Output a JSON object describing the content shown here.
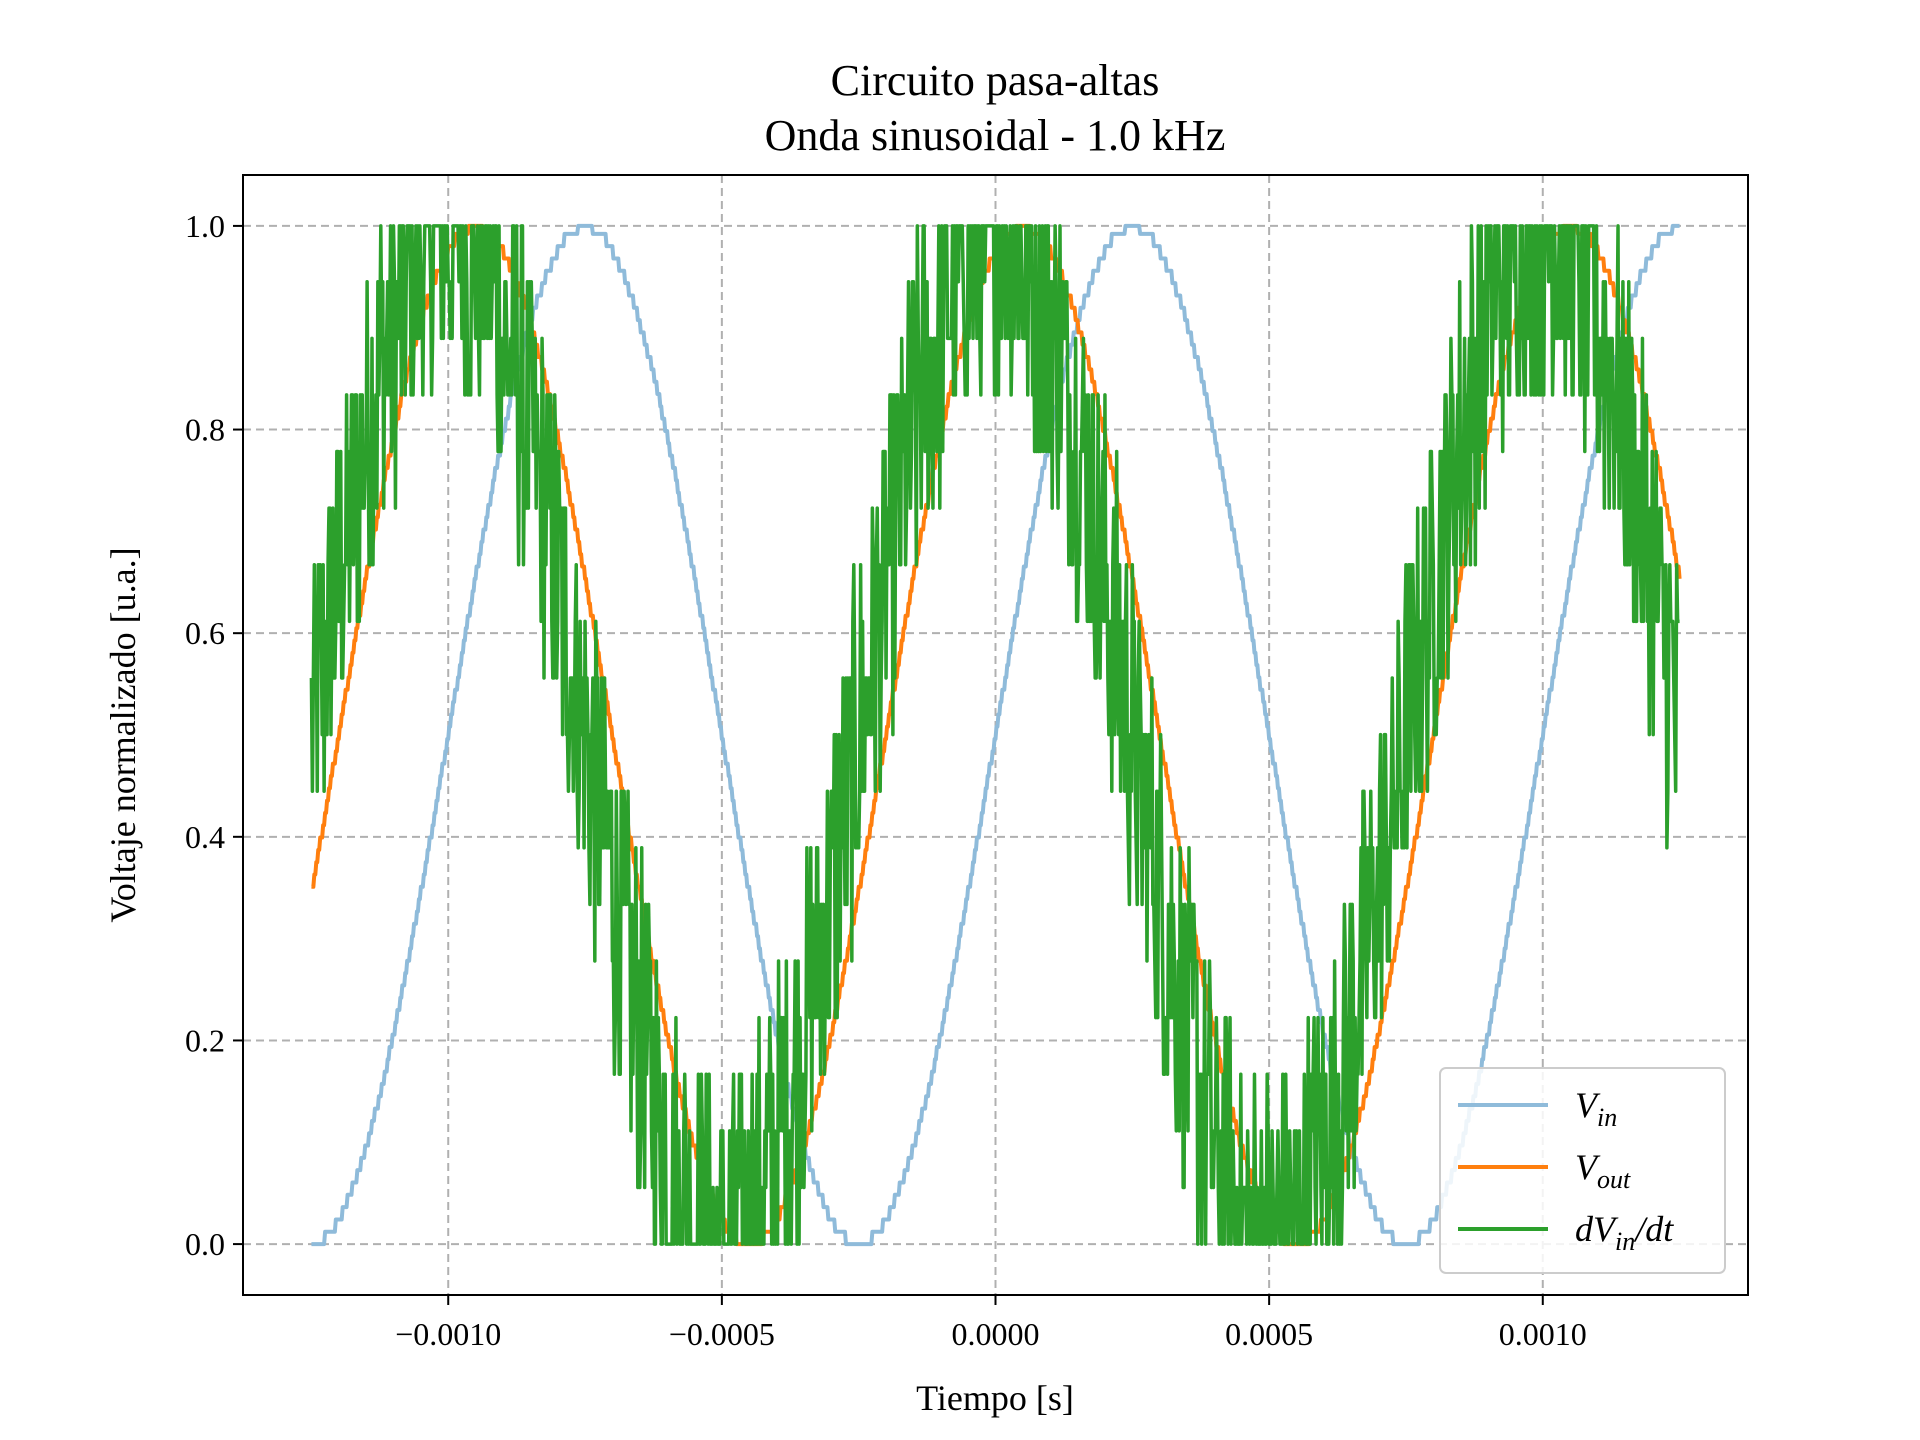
{
  "chart_data": {
    "type": "line",
    "title": [
      "Circuito pasa-altas",
      "Onda sinusoidal - 1.0 kHz"
    ],
    "xlabel": "Tiempo [s]",
    "ylabel": "Voltaje normalizado [u.a.]",
    "xlim": [
      -0.001375,
      0.001375
    ],
    "ylim": [
      -0.05,
      1.05
    ],
    "xticks": [
      -0.001,
      -0.0005,
      0.0,
      0.0005,
      0.001
    ],
    "xtick_labels": [
      "−0.0010",
      "−0.0005",
      "0.0000",
      "0.0005",
      "0.0010"
    ],
    "yticks": [
      0.0,
      0.2,
      0.4,
      0.6,
      0.8,
      1.0
    ],
    "ytick_labels": [
      "0.0",
      "0.2",
      "0.4",
      "0.6",
      "0.8",
      "1.0"
    ],
    "grid": true,
    "legend_position": "lower-right",
    "frequency_hz": 1000,
    "x_range": [
      -0.00125,
      0.00125
    ],
    "series": [
      {
        "name": "V_in",
        "legend_main": "V",
        "legend_sub": "in",
        "legend_suffix": "",
        "color": "#8fbbda",
        "shape": "sine",
        "phase_peak_at": 0.00025,
        "quantization": 0.0121,
        "noise_amplitude": 0.0
      },
      {
        "name": "V_out",
        "legend_main": "V",
        "legend_sub": "out",
        "legend_suffix": "",
        "color": "#ff7f0e",
        "shape": "sine",
        "phase_peak_at": 5e-05,
        "quantization": 0.0121,
        "noise_amplitude": 0.0
      },
      {
        "name": "dV_in/dt",
        "legend_main": "dV",
        "legend_sub": "in",
        "legend_suffix": "/dt",
        "color": "#2ca02c",
        "shape": "sine",
        "phase_peak_at": 0.0,
        "quantization": 0.0556,
        "noise_amplitude": 0.17
      }
    ]
  }
}
